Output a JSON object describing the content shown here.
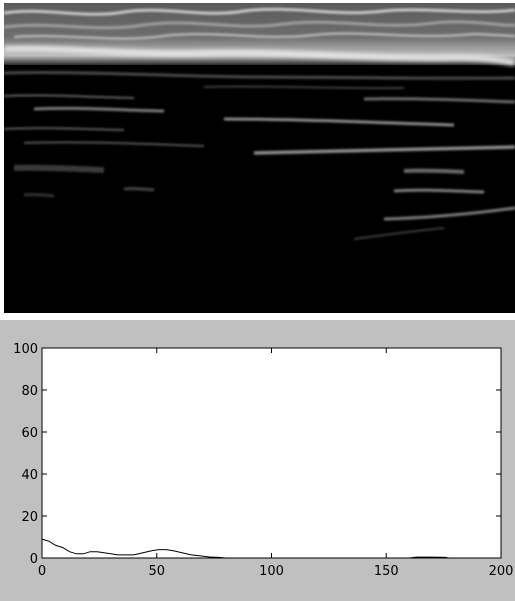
{
  "image": {
    "kind": "ultrasound-image",
    "colors": {
      "background": "#000000",
      "bright_band": "#d8d8d8",
      "echo": "#9a9a9a"
    }
  },
  "panel_colors": {
    "figure_background": "#c0c0c0",
    "axes_background": "#ffffff",
    "line": "#000000"
  },
  "chart_data": {
    "type": "line",
    "title": "",
    "xlabel": "",
    "ylabel": "",
    "xlim": [
      0,
      200
    ],
    "ylim": [
      0,
      100
    ],
    "xticks": [
      0,
      50,
      100,
      150,
      200
    ],
    "yticks": [
      0,
      20,
      40,
      60,
      80,
      100
    ],
    "xtick_labels": [
      "0",
      "50",
      "100",
      "150",
      "200"
    ],
    "ytick_labels": [
      "0",
      "20",
      "40",
      "60",
      "80",
      "100"
    ],
    "grid": false,
    "series": [
      {
        "values": [
          [
            0,
            9
          ],
          [
            3,
            8
          ],
          [
            6,
            6
          ],
          [
            9,
            5
          ],
          [
            12,
            3
          ],
          [
            15,
            2
          ],
          [
            18,
            2
          ],
          [
            21,
            3
          ],
          [
            24,
            3
          ],
          [
            27,
            2.5
          ],
          [
            30,
            2
          ],
          [
            33,
            1.5
          ],
          [
            36,
            1.5
          ],
          [
            40,
            1.5
          ],
          [
            44,
            2.5
          ],
          [
            48,
            3.5
          ],
          [
            51,
            4
          ],
          [
            54,
            4
          ],
          [
            57,
            3.5
          ],
          [
            61,
            2.5
          ],
          [
            65,
            1.5
          ],
          [
            69,
            1
          ],
          [
            73,
            0.5
          ],
          [
            77,
            0.3
          ],
          [
            80,
            0
          ],
          [
            160,
            0
          ],
          [
            163,
            0.4
          ],
          [
            170,
            0.4
          ],
          [
            176,
            0.3
          ],
          [
            177,
            0
          ],
          [
            200,
            0
          ]
        ]
      }
    ]
  }
}
